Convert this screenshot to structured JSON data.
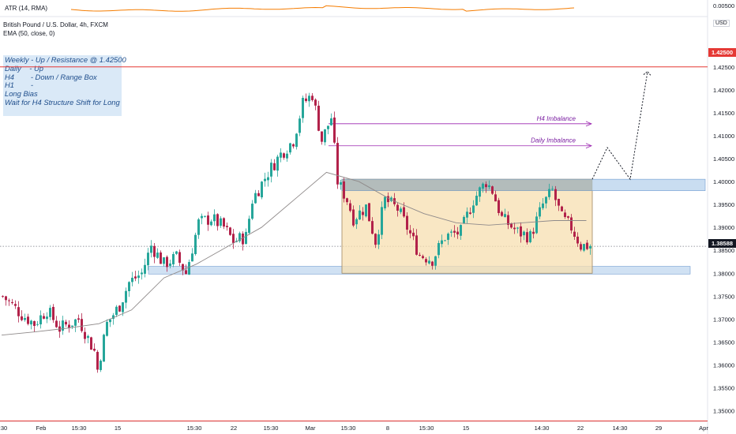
{
  "atr": {
    "label": "ATR (14, RMA)",
    "axis_tick": "0.00500"
  },
  "legend": {
    "symbol": "British Pound / U.S. Dollar, 4h, FXCM",
    "ema": "EMA (50, close, 0)"
  },
  "currency_label": "USD",
  "notes": [
    "Weekly - Up / Resistance @ 1.42500",
    "Daily    - Up",
    "H4        - Down / Range Box",
    "H1        -",
    "",
    "Long Bias",
    "Wait for H4 Structure Shift for Long"
  ],
  "current_price_label": "1.38588",
  "resistance_label": "1.42500",
  "annotation_labels": {
    "h4": "H4 Imbalance",
    "daily": "Daily Imbalance"
  },
  "colors": {
    "bull": "#26a69a",
    "bear": "#b2224a",
    "ema": "#8f8a8a",
    "resistance": "#e53935",
    "zone": "#bcd4ee",
    "range_box": "#f7dfb0",
    "imbalance_arrow": "#9c27b0",
    "atr_line": "#f57c00"
  },
  "chart_data": {
    "type": "candlestick",
    "ylim": [
      1.3477,
      1.4358
    ],
    "y_ticks": [
      "1.42500",
      "1.42000",
      "1.41500",
      "1.41000",
      "1.40500",
      "1.40000",
      "1.39500",
      "1.39000",
      "1.38500",
      "1.38000",
      "1.37500",
      "1.37000",
      "1.36500",
      "1.36000",
      "1.35500",
      "1.35000"
    ],
    "x_ticks": [
      ":30",
      "Feb",
      "15:30",
      "15",
      "15:30",
      "22",
      "15:30",
      "Mar",
      "15:30",
      "8",
      "15:30",
      "15",
      "14:30",
      "22",
      "14:30",
      "29",
      "Apr"
    ],
    "resistance_level": 1.425,
    "current_price": 1.38588,
    "ema_close": [
      1.3665,
      1.3672,
      1.368,
      1.369,
      1.372,
      1.379,
      1.382,
      1.386,
      1.39,
      1.396,
      1.402,
      1.4,
      1.396,
      1.393,
      1.391,
      1.3905,
      1.391,
      1.3915,
      1.3915
    ],
    "range_box": {
      "top": 1.4005,
      "bottom": 1.38
    },
    "demand_zone": {
      "top": 1.4005,
      "bottom": 1.398
    },
    "support_zone": {
      "top": 1.3815,
      "bottom": 1.38
    },
    "imbalance_levels": {
      "h4": 1.4126,
      "daily": 1.4078
    },
    "projected_path": [
      1.4005,
      1.4074,
      1.4005,
      1.424
    ]
  }
}
